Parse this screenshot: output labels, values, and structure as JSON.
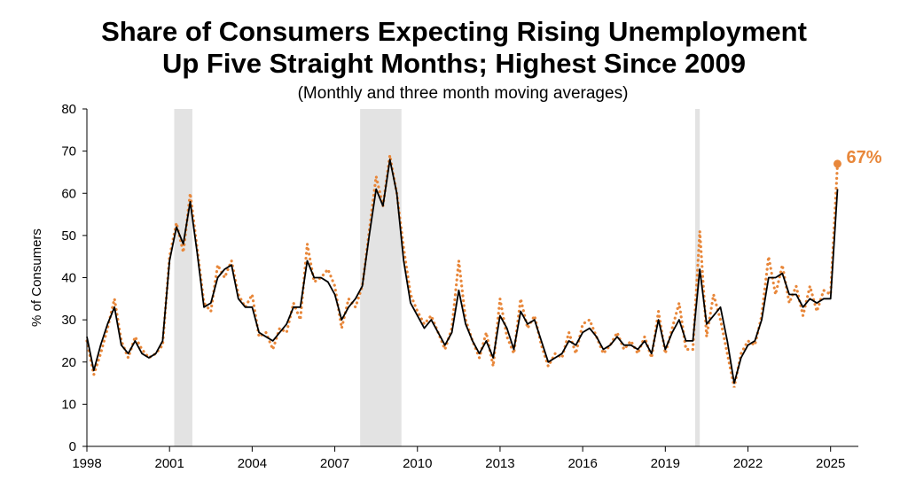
{
  "chart_data": {
    "type": "line",
    "title": "Share of Consumers Expecting Rising Unemployment",
    "title_line2": "Up Five Straight Months; Highest Since 2009",
    "subtitle": "(Monthly and three month moving averages)",
    "ylabel": "% of Consumers",
    "xlabel": "",
    "ylim": [
      0,
      80
    ],
    "yticks": [
      0,
      10,
      20,
      30,
      40,
      50,
      60,
      70,
      80
    ],
    "xlim": [
      1998.0,
      2025.75
    ],
    "xticks": [
      "1998",
      "2001",
      "2004",
      "2007",
      "2010",
      "2013",
      "2016",
      "2019",
      "2022",
      "2025"
    ],
    "grid": false,
    "legend": "none",
    "recessions": [
      [
        2001.17,
        2001.83
      ],
      [
        2007.92,
        2009.42
      ],
      [
        2020.08,
        2020.25
      ]
    ],
    "series": [
      {
        "style": "dotted",
        "color": "#E8873A",
        "points": [
          [
            1998.0,
            25
          ],
          [
            1998.25,
            17
          ],
          [
            1998.5,
            22
          ],
          [
            1998.75,
            28
          ],
          [
            1999.0,
            35
          ],
          [
            1999.25,
            25
          ],
          [
            1999.5,
            21
          ],
          [
            1999.75,
            26
          ],
          [
            2000.0,
            23
          ],
          [
            2000.25,
            21
          ],
          [
            2000.5,
            22
          ],
          [
            2000.75,
            24
          ],
          [
            2001.0,
            45
          ],
          [
            2001.25,
            53
          ],
          [
            2001.5,
            46
          ],
          [
            2001.75,
            60
          ],
          [
            2002.0,
            47
          ],
          [
            2002.25,
            34
          ],
          [
            2002.5,
            32
          ],
          [
            2002.75,
            43
          ],
          [
            2003.0,
            40
          ],
          [
            2003.25,
            44
          ],
          [
            2003.5,
            36
          ],
          [
            2003.75,
            33
          ],
          [
            2004.0,
            36
          ],
          [
            2004.25,
            26
          ],
          [
            2004.5,
            27
          ],
          [
            2004.75,
            23
          ],
          [
            2005.0,
            28
          ],
          [
            2005.25,
            27
          ],
          [
            2005.5,
            34
          ],
          [
            2005.75,
            30
          ],
          [
            2006.0,
            48
          ],
          [
            2006.25,
            39
          ],
          [
            2006.5,
            40
          ],
          [
            2006.75,
            42
          ],
          [
            2007.0,
            38
          ],
          [
            2007.25,
            28
          ],
          [
            2007.5,
            35
          ],
          [
            2007.75,
            33
          ],
          [
            2008.0,
            38
          ],
          [
            2008.25,
            51
          ],
          [
            2008.5,
            64
          ],
          [
            2008.75,
            57
          ],
          [
            2009.0,
            69
          ],
          [
            2009.25,
            60
          ],
          [
            2009.5,
            47
          ],
          [
            2009.75,
            36
          ],
          [
            2010.0,
            32
          ],
          [
            2010.25,
            29
          ],
          [
            2010.5,
            31
          ],
          [
            2010.75,
            27
          ],
          [
            2011.0,
            23
          ],
          [
            2011.25,
            28
          ],
          [
            2011.5,
            44
          ],
          [
            2011.75,
            30
          ],
          [
            2012.0,
            25
          ],
          [
            2012.25,
            21
          ],
          [
            2012.5,
            27
          ],
          [
            2012.75,
            19
          ],
          [
            2013.0,
            35
          ],
          [
            2013.25,
            26
          ],
          [
            2013.5,
            22
          ],
          [
            2013.75,
            35
          ],
          [
            2014.0,
            28
          ],
          [
            2014.25,
            31
          ],
          [
            2014.5,
            24
          ],
          [
            2014.75,
            19
          ],
          [
            2015.0,
            22
          ],
          [
            2015.25,
            21
          ],
          [
            2015.5,
            27
          ],
          [
            2015.75,
            22
          ],
          [
            2016.0,
            29
          ],
          [
            2016.25,
            30
          ],
          [
            2016.5,
            26
          ],
          [
            2016.75,
            22
          ],
          [
            2017.0,
            24
          ],
          [
            2017.25,
            27
          ],
          [
            2017.5,
            23
          ],
          [
            2017.75,
            25
          ],
          [
            2018.0,
            22
          ],
          [
            2018.25,
            26
          ],
          [
            2018.5,
            21
          ],
          [
            2018.75,
            32
          ],
          [
            2019.0,
            22
          ],
          [
            2019.25,
            28
          ],
          [
            2019.5,
            34
          ],
          [
            2019.75,
            23
          ],
          [
            2020.0,
            23
          ],
          [
            2020.25,
            51
          ],
          [
            2020.5,
            26
          ],
          [
            2020.75,
            36
          ],
          [
            2021.0,
            30
          ],
          [
            2021.25,
            22
          ],
          [
            2021.5,
            14
          ],
          [
            2021.75,
            22
          ],
          [
            2022.0,
            25
          ],
          [
            2022.25,
            24
          ],
          [
            2022.5,
            31
          ],
          [
            2022.75,
            45
          ],
          [
            2023.0,
            36
          ],
          [
            2023.25,
            43
          ],
          [
            2023.5,
            34
          ],
          [
            2023.75,
            38
          ],
          [
            2024.0,
            31
          ],
          [
            2024.25,
            38
          ],
          [
            2024.5,
            32
          ],
          [
            2024.75,
            37
          ],
          [
            2025.0,
            36
          ],
          [
            2025.25,
            67
          ]
        ]
      },
      {
        "style": "solid",
        "color": "#000000",
        "points": [
          [
            1998.0,
            26
          ],
          [
            1998.25,
            18
          ],
          [
            1998.5,
            24
          ],
          [
            1998.75,
            29
          ],
          [
            1999.0,
            33
          ],
          [
            1999.25,
            24
          ],
          [
            1999.5,
            22
          ],
          [
            1999.75,
            25
          ],
          [
            2000.0,
            22
          ],
          [
            2000.25,
            21
          ],
          [
            2000.5,
            22
          ],
          [
            2000.75,
            25
          ],
          [
            2001.0,
            44
          ],
          [
            2001.25,
            52
          ],
          [
            2001.5,
            48
          ],
          [
            2001.75,
            58
          ],
          [
            2002.0,
            46
          ],
          [
            2002.25,
            33
          ],
          [
            2002.5,
            34
          ],
          [
            2002.75,
            40
          ],
          [
            2003.0,
            42
          ],
          [
            2003.25,
            43
          ],
          [
            2003.5,
            35
          ],
          [
            2003.75,
            33
          ],
          [
            2004.0,
            33
          ],
          [
            2004.25,
            27
          ],
          [
            2004.5,
            26
          ],
          [
            2004.75,
            25
          ],
          [
            2005.0,
            27
          ],
          [
            2005.25,
            29
          ],
          [
            2005.5,
            33
          ],
          [
            2005.75,
            33
          ],
          [
            2006.0,
            44
          ],
          [
            2006.25,
            40
          ],
          [
            2006.5,
            40
          ],
          [
            2006.75,
            39
          ],
          [
            2007.0,
            36
          ],
          [
            2007.25,
            30
          ],
          [
            2007.5,
            33
          ],
          [
            2007.75,
            35
          ],
          [
            2008.0,
            38
          ],
          [
            2008.25,
            50
          ],
          [
            2008.5,
            61
          ],
          [
            2008.75,
            57
          ],
          [
            2009.0,
            68
          ],
          [
            2009.25,
            60
          ],
          [
            2009.5,
            44
          ],
          [
            2009.75,
            34
          ],
          [
            2010.0,
            31
          ],
          [
            2010.25,
            28
          ],
          [
            2010.5,
            30
          ],
          [
            2010.75,
            27
          ],
          [
            2011.0,
            24
          ],
          [
            2011.25,
            27
          ],
          [
            2011.5,
            37
          ],
          [
            2011.75,
            29
          ],
          [
            2012.0,
            25
          ],
          [
            2012.25,
            22
          ],
          [
            2012.5,
            25
          ],
          [
            2012.75,
            21
          ],
          [
            2013.0,
            31
          ],
          [
            2013.25,
            28
          ],
          [
            2013.5,
            23
          ],
          [
            2013.75,
            32
          ],
          [
            2014.0,
            29
          ],
          [
            2014.25,
            30
          ],
          [
            2014.5,
            25
          ],
          [
            2014.75,
            20
          ],
          [
            2015.0,
            21
          ],
          [
            2015.25,
            22
          ],
          [
            2015.5,
            25
          ],
          [
            2015.75,
            24
          ],
          [
            2016.0,
            27
          ],
          [
            2016.25,
            28
          ],
          [
            2016.5,
            26
          ],
          [
            2016.75,
            23
          ],
          [
            2017.0,
            24
          ],
          [
            2017.25,
            26
          ],
          [
            2017.5,
            24
          ],
          [
            2017.75,
            24
          ],
          [
            2018.0,
            23
          ],
          [
            2018.25,
            25
          ],
          [
            2018.5,
            22
          ],
          [
            2018.75,
            30
          ],
          [
            2019.0,
            23
          ],
          [
            2019.25,
            27
          ],
          [
            2019.5,
            30
          ],
          [
            2019.75,
            25
          ],
          [
            2020.0,
            25
          ],
          [
            2020.25,
            42
          ],
          [
            2020.5,
            29
          ],
          [
            2020.75,
            31
          ],
          [
            2021.0,
            33
          ],
          [
            2021.25,
            25
          ],
          [
            2021.5,
            15
          ],
          [
            2021.75,
            21
          ],
          [
            2022.0,
            24
          ],
          [
            2022.25,
            25
          ],
          [
            2022.5,
            30
          ],
          [
            2022.75,
            40
          ],
          [
            2023.0,
            40
          ],
          [
            2023.25,
            41
          ],
          [
            2023.5,
            36
          ],
          [
            2023.75,
            36
          ],
          [
            2024.0,
            33
          ],
          [
            2024.25,
            35
          ],
          [
            2024.5,
            34
          ],
          [
            2024.75,
            35
          ],
          [
            2025.0,
            35
          ],
          [
            2025.25,
            61
          ]
        ]
      }
    ],
    "annotation": {
      "text": "67%",
      "x": 2025.25,
      "y": 67,
      "color": "#E8873A"
    }
  }
}
